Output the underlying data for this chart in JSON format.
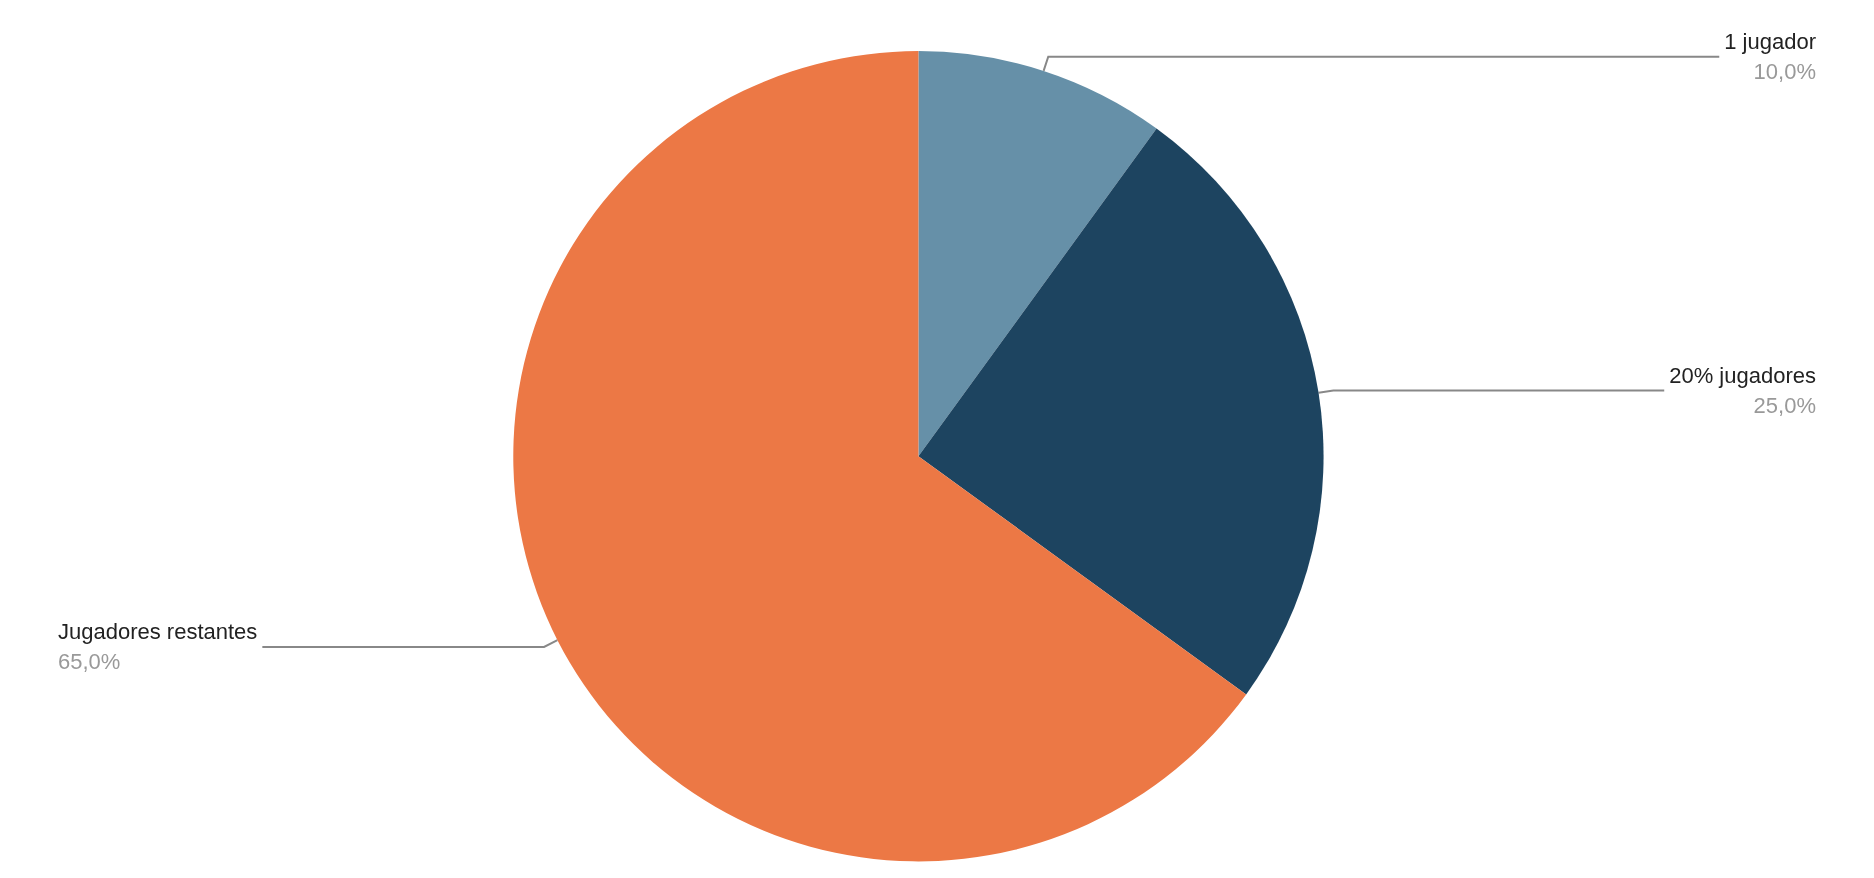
{
  "chart_data": {
    "type": "pie",
    "categories": [
      "1 jugador",
      "20% jugadores",
      "Jugadores restantes"
    ],
    "values": [
      10,
      25,
      65
    ],
    "value_labels": [
      "10,0%",
      "25,0%",
      "65,0%"
    ],
    "colors": [
      "#6690a8",
      "#1d4460",
      "#ec7845"
    ],
    "legend": false
  }
}
